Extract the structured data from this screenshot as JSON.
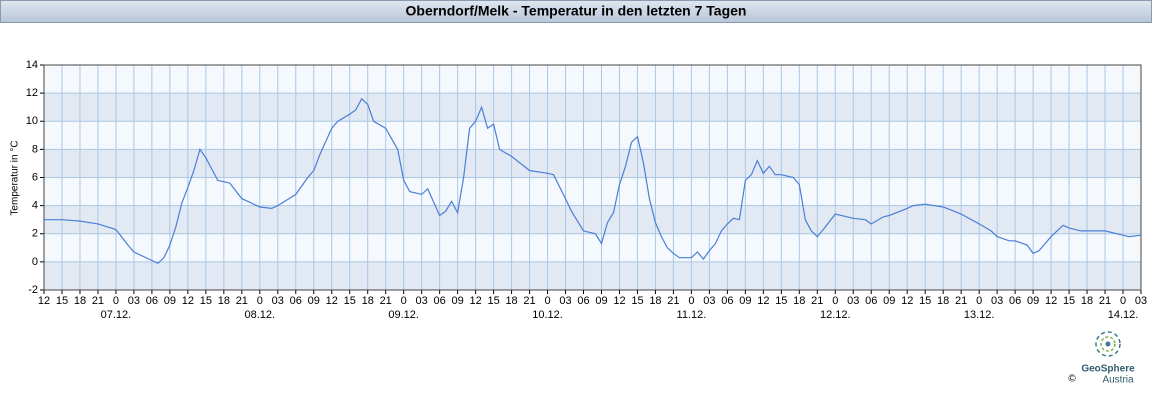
{
  "chart_data": {
    "type": "line",
    "title": "Oberndorf/Melk - Temperatur in den letzten 7 Tagen",
    "ylabel": "Temperatur in °C",
    "brand": "GeoSphere",
    "brand_sub": "Austria",
    "copyright": "©",
    "color": "#4a7fd8",
    "grid": true,
    "xlim": [
      "06.12. 12:00",
      "14.12. 03:00"
    ],
    "ylim": [
      -2,
      14
    ],
    "yticks": [
      -2,
      0,
      2,
      4,
      6,
      8,
      10,
      12,
      14
    ],
    "xticks": [
      {
        "value": "06.12. 12:00",
        "label": "12"
      },
      {
        "value": "06.12. 15:00",
        "label": "15"
      },
      {
        "value": "06.12. 18:00",
        "label": "18"
      },
      {
        "value": "06.12. 21:00",
        "label": "21"
      },
      {
        "value": "07.12. 00:00",
        "label": "0"
      },
      {
        "value": "07.12. 03:00",
        "label": "03"
      },
      {
        "value": "07.12. 06:00",
        "label": "06"
      },
      {
        "value": "07.12. 09:00",
        "label": "09"
      },
      {
        "value": "07.12. 12:00",
        "label": "12"
      },
      {
        "value": "07.12. 15:00",
        "label": "15"
      },
      {
        "value": "07.12. 18:00",
        "label": "18"
      },
      {
        "value": "07.12. 21:00",
        "label": "21"
      },
      {
        "value": "08.12. 00:00",
        "label": "0"
      },
      {
        "value": "08.12. 03:00",
        "label": "03"
      },
      {
        "value": "08.12. 06:00",
        "label": "06"
      },
      {
        "value": "08.12. 09:00",
        "label": "09"
      },
      {
        "value": "08.12. 12:00",
        "label": "12"
      },
      {
        "value": "08.12. 15:00",
        "label": "15"
      },
      {
        "value": "08.12. 18:00",
        "label": "18"
      },
      {
        "value": "08.12. 21:00",
        "label": "21"
      },
      {
        "value": "09.12. 00:00",
        "label": "0"
      },
      {
        "value": "09.12. 03:00",
        "label": "03"
      },
      {
        "value": "09.12. 06:00",
        "label": "06"
      },
      {
        "value": "09.12. 09:00",
        "label": "09"
      },
      {
        "value": "09.12. 12:00",
        "label": "12"
      },
      {
        "value": "09.12. 15:00",
        "label": "15"
      },
      {
        "value": "09.12. 18:00",
        "label": "18"
      },
      {
        "value": "09.12. 21:00",
        "label": "21"
      },
      {
        "value": "10.12. 00:00",
        "label": "0"
      },
      {
        "value": "10.12. 03:00",
        "label": "03"
      },
      {
        "value": "10.12. 06:00",
        "label": "06"
      },
      {
        "value": "10.12. 09:00",
        "label": "09"
      },
      {
        "value": "10.12. 12:00",
        "label": "12"
      },
      {
        "value": "10.12. 15:00",
        "label": "15"
      },
      {
        "value": "10.12. 18:00",
        "label": "18"
      },
      {
        "value": "10.12. 21:00",
        "label": "21"
      },
      {
        "value": "11.12. 00:00",
        "label": "0"
      },
      {
        "value": "11.12. 03:00",
        "label": "03"
      },
      {
        "value": "11.12. 06:00",
        "label": "06"
      },
      {
        "value": "11.12. 09:00",
        "label": "09"
      },
      {
        "value": "11.12. 12:00",
        "label": "12"
      },
      {
        "value": "11.12. 15:00",
        "label": "15"
      },
      {
        "value": "11.12. 18:00",
        "label": "18"
      },
      {
        "value": "11.12. 21:00",
        "label": "21"
      },
      {
        "value": "12.12. 00:00",
        "label": "0"
      },
      {
        "value": "12.12. 03:00",
        "label": "03"
      },
      {
        "value": "12.12. 06:00",
        "label": "06"
      },
      {
        "value": "12.12. 09:00",
        "label": "09"
      },
      {
        "value": "12.12. 12:00",
        "label": "12"
      },
      {
        "value": "12.12. 15:00",
        "label": "15"
      },
      {
        "value": "12.12. 18:00",
        "label": "18"
      },
      {
        "value": "12.12. 21:00",
        "label": "21"
      },
      {
        "value": "13.12. 00:00",
        "label": "0"
      },
      {
        "value": "13.12. 03:00",
        "label": "03"
      },
      {
        "value": "13.12. 06:00",
        "label": "06"
      },
      {
        "value": "13.12. 09:00",
        "label": "09"
      },
      {
        "value": "13.12. 12:00",
        "label": "12"
      },
      {
        "value": "13.12. 15:00",
        "label": "15"
      },
      {
        "value": "13.12. 18:00",
        "label": "18"
      },
      {
        "value": "13.12. 21:00",
        "label": "21"
      },
      {
        "value": "14.12. 00:00",
        "label": "0"
      },
      {
        "value": "14.12. 03:00",
        "label": "03"
      }
    ],
    "date_labels": [
      {
        "value": "07.12. 00:00",
        "label": "07.12."
      },
      {
        "value": "08.12. 00:00",
        "label": "08.12."
      },
      {
        "value": "09.12. 00:00",
        "label": "09.12."
      },
      {
        "value": "10.12. 00:00",
        "label": "10.12."
      },
      {
        "value": "11.12. 00:00",
        "label": "11.12."
      },
      {
        "value": "12.12. 00:00",
        "label": "12.12."
      },
      {
        "value": "13.12. 00:00",
        "label": "13.12."
      },
      {
        "value": "14.12. 00:00",
        "label": "14.12."
      }
    ],
    "x": [
      "06.12. 12:00",
      "06.12. 15:00",
      "06.12. 18:00",
      "06.12. 21:00",
      "07.12. 00:00",
      "07.12. 02:00",
      "07.12. 03:00",
      "07.12. 06:00",
      "07.12. 07:00",
      "07.12. 08:00",
      "07.12. 09:00",
      "07.12. 10:00",
      "07.12. 11:00",
      "07.12. 12:00",
      "07.12. 13:00",
      "07.12. 14:00",
      "07.12. 15:00",
      "07.12. 16:00",
      "07.12. 17:00",
      "07.12. 18:00",
      "07.12. 19:00",
      "07.12. 21:00",
      "08.12. 00:00",
      "08.12. 02:00",
      "08.12. 03:00",
      "08.12. 06:00",
      "08.12. 08:00",
      "08.12. 09:00",
      "08.12. 10:00",
      "08.12. 12:00",
      "08.12. 13:00",
      "08.12. 15:00",
      "08.12. 16:00",
      "08.12. 17:00",
      "08.12. 18:00",
      "08.12. 19:00",
      "08.12. 21:00",
      "08.12. 23:00",
      "09.12. 00:00",
      "09.12. 01:00",
      "09.12. 03:00",
      "09.12. 04:00",
      "09.12. 06:00",
      "09.12. 07:00",
      "09.12. 08:00",
      "09.12. 09:00",
      "09.12. 10:00",
      "09.12. 11:00",
      "09.12. 12:00",
      "09.12. 13:00",
      "09.12. 14:00",
      "09.12. 15:00",
      "09.12. 16:00",
      "09.12. 18:00",
      "09.12. 21:00",
      "10.12. 00:00",
      "10.12. 01:00",
      "10.12. 03:00",
      "10.12. 04:00",
      "10.12. 06:00",
      "10.12. 08:00",
      "10.12. 09:00",
      "10.12. 10:00",
      "10.12. 11:00",
      "10.12. 12:00",
      "10.12. 13:00",
      "10.12. 14:00",
      "10.12. 15:00",
      "10.12. 16:00",
      "10.12. 17:00",
      "10.12. 18:00",
      "10.12. 19:00",
      "10.12. 20:00",
      "10.12. 21:00",
      "10.12. 22:00",
      "11.12. 00:00",
      "11.12. 01:00",
      "11.12. 02:00",
      "11.12. 03:00",
      "11.12. 04:00",
      "11.12. 05:00",
      "11.12. 06:00",
      "11.12. 07:00",
      "11.12. 08:00",
      "11.12. 09:00",
      "11.12. 10:00",
      "11.12. 11:00",
      "11.12. 12:00",
      "11.12. 13:00",
      "11.12. 14:00",
      "11.12. 15:00",
      "11.12. 17:00",
      "11.12. 18:00",
      "11.12. 19:00",
      "11.12. 20:00",
      "11.12. 21:00",
      "11.12. 22:00",
      "12.12. 00:00",
      "12.12. 03:00",
      "12.12. 05:00",
      "12.12. 06:00",
      "12.12. 08:00",
      "12.12. 09:00",
      "12.12. 12:00",
      "12.12. 13:00",
      "12.12. 15:00",
      "12.12. 18:00",
      "12.12. 21:00",
      "13.12. 00:00",
      "13.12. 02:00",
      "13.12. 03:00",
      "13.12. 05:00",
      "13.12. 06:00",
      "13.12. 08:00",
      "13.12. 09:00",
      "13.12. 10:00",
      "13.12. 12:00",
      "13.12. 14:00",
      "13.12. 15:00",
      "13.12. 17:00",
      "13.12. 18:00",
      "13.12. 21:00",
      "14.12. 00:00",
      "14.12. 01:00",
      "14.12. 03:00"
    ],
    "values": [
      3.0,
      3.0,
      2.9,
      2.7,
      2.3,
      1.2,
      0.7,
      0.1,
      -0.1,
      0.3,
      1.2,
      2.5,
      4.2,
      5.3,
      6.5,
      8.0,
      7.4,
      6.6,
      5.8,
      5.7,
      5.6,
      4.5,
      3.9,
      3.8,
      4.0,
      4.8,
      6.0,
      6.5,
      7.6,
      9.5,
      10.0,
      10.5,
      10.8,
      11.6,
      11.2,
      10.0,
      9.5,
      8.0,
      5.8,
      5.0,
      4.8,
      5.2,
      3.3,
      3.6,
      4.3,
      3.5,
      6.0,
      9.5,
      10.0,
      11.0,
      9.5,
      9.8,
      8.0,
      7.5,
      6.5,
      6.3,
      6.2,
      4.5,
      3.6,
      2.2,
      2.0,
      1.3,
      2.8,
      3.5,
      5.5,
      6.8,
      8.5,
      8.9,
      7.0,
      4.5,
      2.8,
      1.8,
      1.0,
      0.6,
      0.3,
      0.3,
      0.7,
      0.2,
      0.8,
      1.3,
      2.2,
      2.7,
      3.1,
      3.0,
      5.8,
      6.2,
      7.2,
      6.3,
      6.8,
      6.2,
      6.2,
      6.0,
      5.5,
      3.0,
      2.2,
      1.8,
      2.3,
      3.4,
      3.1,
      3.0,
      2.7,
      3.2,
      3.3,
      3.8,
      4.0,
      4.1,
      3.9,
      3.4,
      2.7,
      2.2,
      1.8,
      1.5,
      1.5,
      1.2,
      0.6,
      0.8,
      1.8,
      2.6,
      2.4,
      2.2,
      2.2,
      2.2,
      1.9,
      1.8,
      1.9
    ]
  }
}
